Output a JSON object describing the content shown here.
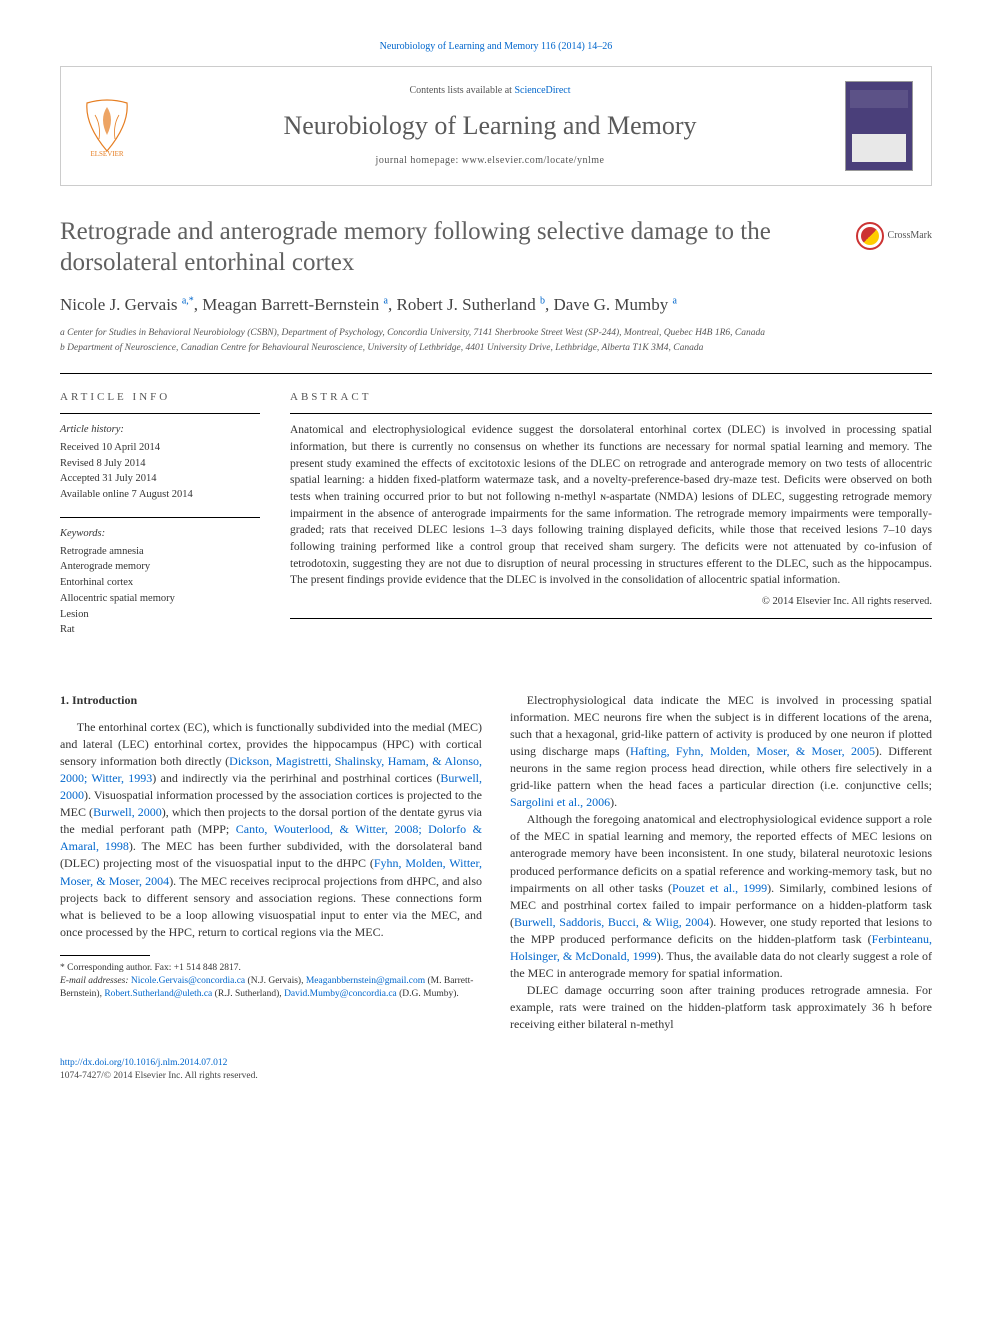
{
  "citation": "Neurobiology of Learning and Memory 116 (2014) 14–26",
  "header": {
    "contents_prefix": "Contents lists available at ",
    "contents_link": "ScienceDirect",
    "journal_name": "Neurobiology of Learning and Memory",
    "homepage_prefix": "journal homepage: ",
    "homepage_url": "www.elsevier.com/locate/ynlme"
  },
  "crossmark_label": "CrossMark",
  "title": "Retrograde and anterograde memory following selective damage to the dorsolateral entorhinal cortex",
  "authors_html": "Nicole J. Gervais <sup>a,*</sup>, Meagan Barrett-Bernstein <sup>a</sup>, Robert J. Sutherland <sup>b</sup>, Dave G. Mumby <sup>a</sup>",
  "affiliations": [
    "a Center for Studies in Behavioral Neurobiology (CSBN), Department of Psychology, Concordia University, 7141 Sherbrooke Street West (SP-244), Montreal, Quebec H4B 1R6, Canada",
    "b Department of Neuroscience, Canadian Centre for Behavioural Neuroscience, University of Lethbridge, 4401 University Drive, Lethbridge, Alberta T1K 3M4, Canada"
  ],
  "info": {
    "heading": "ARTICLE INFO",
    "history_label": "Article history:",
    "history": [
      "Received 10 April 2014",
      "Revised 8 July 2014",
      "Accepted 31 July 2014",
      "Available online 7 August 2014"
    ],
    "keywords_label": "Keywords:",
    "keywords": [
      "Retrograde amnesia",
      "Anterograde memory",
      "Entorhinal cortex",
      "Allocentric spatial memory",
      "Lesion",
      "Rat"
    ]
  },
  "abstract": {
    "heading": "ABSTRACT",
    "text": "Anatomical and electrophysiological evidence suggest the dorsolateral entorhinal cortex (DLEC) is involved in processing spatial information, but there is currently no consensus on whether its functions are necessary for normal spatial learning and memory. The present study examined the effects of excitotoxic lesions of the DLEC on retrograde and anterograde memory on two tests of allocentric spatial learning: a hidden fixed-platform watermaze task, and a novelty-preference-based dry-maze test. Deficits were observed on both tests when training occurred prior to but not following n-methyl ɴ-aspartate (NMDA) lesions of DLEC, suggesting retrograde memory impairment in the absence of anterograde impairments for the same information. The retrograde memory impairments were temporally-graded; rats that received DLEC lesions 1–3 days following training displayed deficits, while those that received lesions 7–10 days following training performed like a control group that received sham surgery. The deficits were not attenuated by co-infusion of tetrodotoxin, suggesting they are not due to disruption of neural processing in structures efferent to the DLEC, such as the hippocampus. The present findings provide evidence that the DLEC is involved in the consolidation of allocentric spatial information.",
    "copyright": "© 2014 Elsevier Inc. All rights reserved."
  },
  "body": {
    "section_heading": "1. Introduction",
    "p1": "The entorhinal cortex (EC), which is functionally subdivided into the medial (MEC) and lateral (LEC) entorhinal cortex, provides the hippocampus (HPC) with cortical sensory information both directly (",
    "c1": "Dickson, Magistretti, Shalinsky, Hamam, & Alonso, 2000; Witter, 1993",
    "p1b": ") and indirectly via the perirhinal and postrhinal cortices (",
    "c2": "Burwell, 2000",
    "p1c": "). Visuospatial information processed by the association cortices is projected to the MEC (",
    "c3": "Burwell, 2000",
    "p1d": "), which then projects to the dorsal portion of the dentate gyrus via the medial perforant path (MPP; ",
    "c4": "Canto, Wouterlood, & Witter, 2008; Dolorfo & Amaral, 1998",
    "p1e": "). The MEC has been further subdivided, with the dorsolateral band (DLEC) projecting most of the visuospatial input to the dHPC (",
    "c5": "Fyhn, Molden, Witter, Moser, & Moser, 2004",
    "p1f": "). The MEC receives reciprocal projections from dHPC, and also projects back to different sensory and association regions. These connections form what is believed to be a loop allowing visuospatial input to enter via the MEC, and once processed by the HPC, return to cortical regions via the MEC.",
    "p2a": "Electrophysiological data indicate the MEC is involved in processing spatial information. MEC neurons fire when the subject is in different locations of the arena, such that a hexagonal, grid-like pattern of activity is produced by one neuron if plotted using discharge maps (",
    "c6": "Hafting, Fyhn, Molden, Moser, & Moser, 2005",
    "p2b": "). Different neurons in the same region process head direction, while others fire selectively in a grid-like pattern when the head faces a particular direction (i.e. conjunctive cells; ",
    "c7": "Sargolini et al., 2006",
    "p2c": ").",
    "p3a": "Although the foregoing anatomical and electrophysiological evidence support a role of the MEC in spatial learning and memory, the reported effects of MEC lesions on anterograde memory have been inconsistent. In one study, bilateral neurotoxic lesions produced performance deficits on a spatial reference and working-memory task, but no impairments on all other tasks (",
    "c8": "Pouzet et al., 1999",
    "p3b": "). Similarly, combined lesions of MEC and postrhinal cortex failed to impair performance on a hidden-platform task (",
    "c9": "Burwell, Saddoris, Bucci, & Wiig, 2004",
    "p3c": "). However, one study reported that lesions to the MPP produced performance deficits on the hidden-platform task (",
    "c10": "Ferbinteanu, Holsinger, & McDonald, 1999",
    "p3d": "). Thus, the available data do not clearly suggest a role of the MEC in anterograde memory for spatial information.",
    "p4": "DLEC damage occurring soon after training produces retrograde amnesia. For example, rats were trained on the hidden-platform task approximately 36 h before receiving either bilateral n-methyl"
  },
  "footnotes": {
    "corr": "* Corresponding author. Fax: +1 514 848 2817.",
    "email_label": "E-mail addresses: ",
    "emails": "Nicole.Gervais@concordia.ca (N.J. Gervais), Meaganbbernstein@gmail.com (M. Barrett-Bernstein), Robert.Sutherland@uleth.ca (R.J. Sutherland), David.Mumby@concordia.ca (D.G. Mumby)."
  },
  "bottom": {
    "doi": "http://dx.doi.org/10.1016/j.nlm.2014.07.012",
    "issn": "1074-7427/© 2014 Elsevier Inc. All rights reserved."
  },
  "colors": {
    "link": "#0066cc",
    "text": "#333333",
    "title_gray": "#606060",
    "border": "#cccccc"
  }
}
